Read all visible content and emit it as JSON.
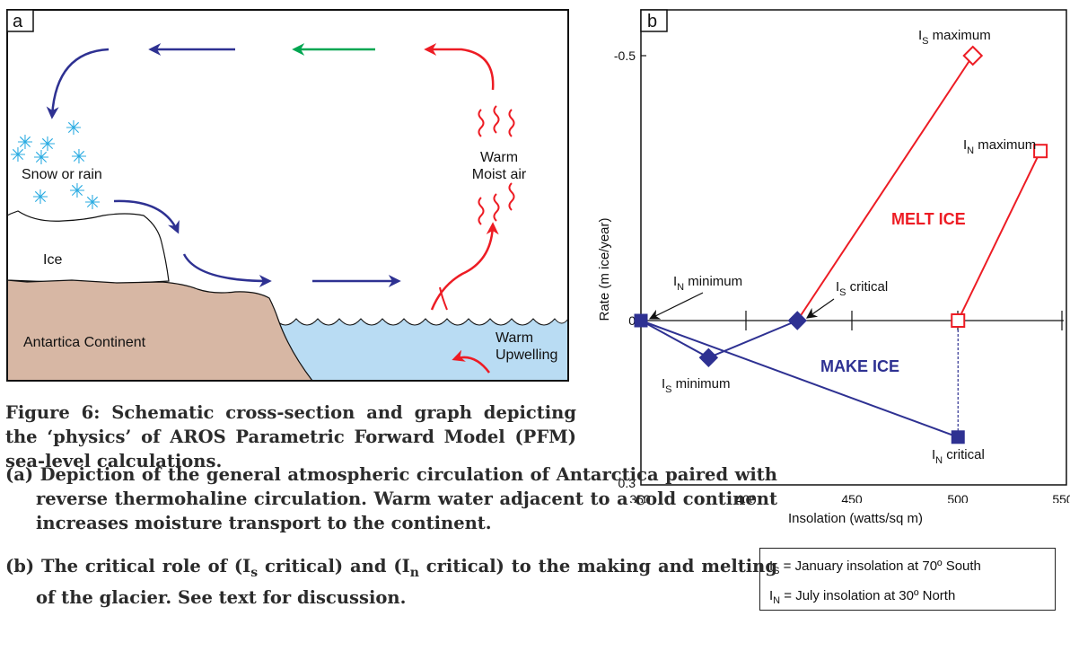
{
  "panel_a": {
    "label": "a",
    "snow_label": "Snow or rain",
    "warm_air_line1": "Warm",
    "warm_air_line2": "Moist air",
    "ice_label": "Ice",
    "continent_label": "Antartica Continent",
    "upwelling_line1": "Warm",
    "upwelling_line2": "Upwelling",
    "colors": {
      "continent": "#d7b7a4",
      "water": "#b9dcf3",
      "cold_arrow": "#2e3192",
      "warm_arrow": "#ed1c24",
      "mid_arrow": "#00a651",
      "snow": "#29abe2"
    }
  },
  "panel_b": {
    "label": "b",
    "ylabel": "Rate (m ice/year)",
    "xlabel": "Insolation (watts/sq m)",
    "y_ticks": [
      "-0.5",
      "0",
      "0.3"
    ],
    "x_ticks": [
      "350",
      "400",
      "450",
      "500",
      "550"
    ],
    "melt_label": "MELT ICE",
    "make_label": "MAKE ICE",
    "annotations": {
      "is_max": {
        "main": "I",
        "sub": "S",
        "rest": " maximum"
      },
      "in_max": {
        "main": "I",
        "sub": "N",
        "rest": " maximum"
      },
      "in_min": {
        "main": "I",
        "sub": "N",
        "rest": "  minimum"
      },
      "is_crit": {
        "main": "I",
        "sub": "S",
        "rest": " critical"
      },
      "is_min": {
        "main": "I",
        "sub": "S",
        "rest": " minimum"
      },
      "in_crit": {
        "main": "I",
        "sub": "N",
        "rest": " critical"
      }
    },
    "colors": {
      "melt": "#ed1c24",
      "make": "#2e3192"
    }
  },
  "chart_data": {
    "type": "line",
    "xlabel": "Insolation (watts/sq m)",
    "ylabel": "Rate (m ice/year)",
    "xlim": [
      350,
      550
    ],
    "ylim": [
      -0.5,
      0.3
    ],
    "series": [
      {
        "points": [
          [
            424,
            0
          ],
          [
            507,
            -0.5
          ]
        ]
      },
      {
        "points": [
          [
            500,
            0
          ],
          [
            539,
            -0.32
          ]
        ]
      },
      {
        "points": [
          [
            350,
            0
          ],
          [
            382,
            0.07
          ],
          [
            424,
            0
          ]
        ]
      },
      {
        "points": [
          [
            350,
            0
          ],
          [
            500,
            0.22
          ]
        ]
      },
      {
        "points": [
          [
            500,
            0
          ],
          [
            500,
            0.22
          ]
        ]
      }
    ],
    "markers": [
      {
        "x": 350,
        "y": 0,
        "shape": "square-filled"
      },
      {
        "x": 382,
        "y": 0.07,
        "shape": "diamond-filled"
      },
      {
        "x": 424,
        "y": 0,
        "shape": "diamond-filled"
      },
      {
        "x": 500,
        "y": 0.22,
        "shape": "square-filled"
      },
      {
        "x": 500,
        "y": 0,
        "shape": "square-open"
      },
      {
        "x": 507,
        "y": -0.5,
        "shape": "diamond-open"
      },
      {
        "x": 539,
        "y": -0.32,
        "shape": "square-open"
      }
    ]
  },
  "legend": {
    "line1": {
      "main": "I",
      "sub": "S",
      "rest": " = January insolation at 70º South"
    },
    "line2": {
      "main": "I",
      "sub": "N",
      "rest": " = July insolation at 30º North"
    }
  },
  "caption": {
    "title": "Figure 6:   Schematic cross-section and graph depicting the ‘physics’ of AROS Parametric Forward Model (PFM) sea-level calculations.",
    "item_a": "(a) Depiction of the general atmospheric circulation of Antarctica paired with reverse thermohaline circulation. Warm water adjacent to a cold continent increases moisture transport to the continent.",
    "item_b_pre": "(b) The critical role of (I",
    "item_b_s": "s",
    "item_b_mid": " critical) and  (I",
    "item_b_n": "n",
    "item_b_post": " critical) to the making and melting of the glacier. See text for discussion."
  }
}
